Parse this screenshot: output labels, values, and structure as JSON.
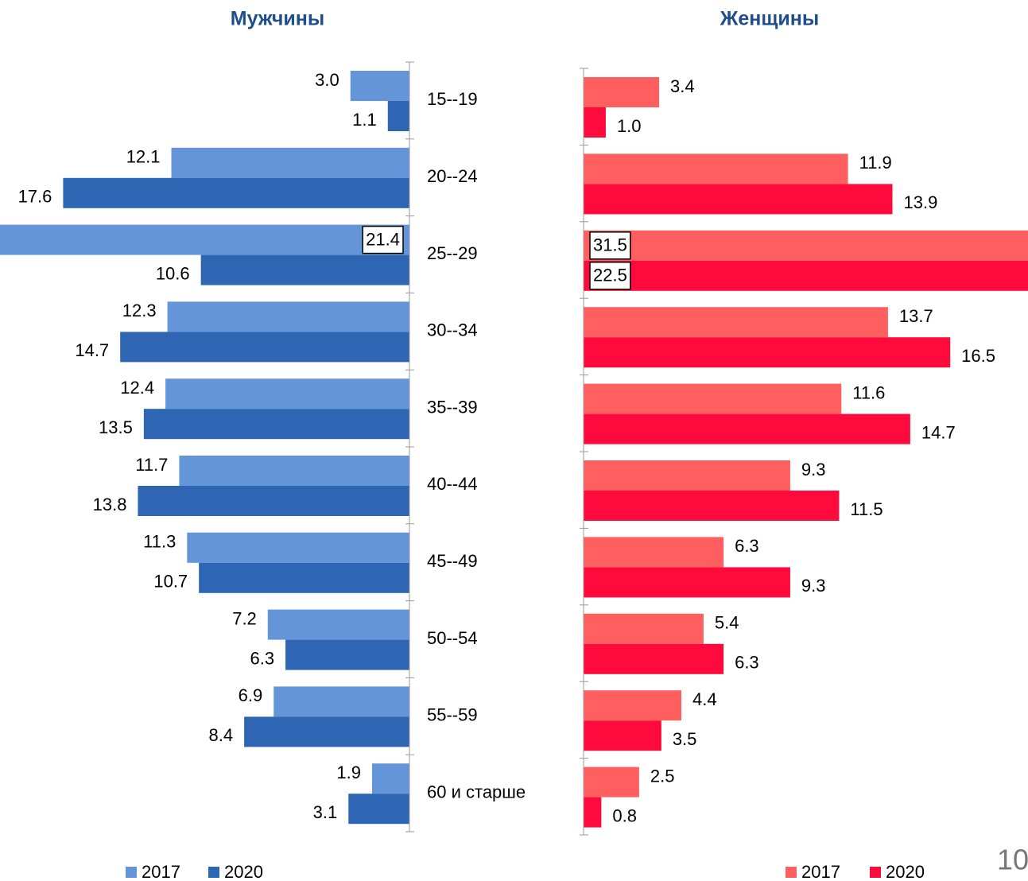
{
  "chart_data": [
    {
      "type": "bar",
      "orientation": "horizontal",
      "direction": "left",
      "title": "Мужчины",
      "categories": [
        "15--19",
        "20--24",
        "25--29",
        "30--34",
        "35--39",
        "40--44",
        "45--49",
        "50--54",
        "55--59",
        "60 и старше"
      ],
      "xlim": [
        0,
        20
      ],
      "series": [
        {
          "name": "2017",
          "color": "#6495d8",
          "values": [
            3.0,
            12.1,
            21.4,
            12.3,
            12.4,
            11.7,
            11.3,
            7.2,
            6.9,
            1.9
          ],
          "value_labels": [
            "3.0",
            "12.1",
            "21.4",
            "12.3",
            "12.4",
            "11.7",
            "11.3",
            "7.2",
            "6.9",
            "1.9"
          ]
        },
        {
          "name": "2020",
          "color": "#2e66b3",
          "values": [
            1.1,
            17.6,
            10.6,
            14.7,
            13.5,
            13.8,
            10.7,
            6.3,
            8.4,
            3.1
          ],
          "value_labels": [
            "1.1",
            "17.6",
            "10.6",
            "14.7",
            "13.5",
            "13.8",
            "10.7",
            "6.3",
            "8.4",
            "3.1"
          ]
        }
      ]
    },
    {
      "type": "bar",
      "orientation": "horizontal",
      "direction": "right",
      "title": "Женщины",
      "xlim": [
        0,
        20
      ],
      "series": [
        {
          "name": "2017",
          "color": "#ff5f5f",
          "values": [
            3.4,
            11.9,
            31.5,
            13.7,
            11.6,
            9.3,
            6.3,
            5.4,
            4.4,
            2.5
          ],
          "value_labels": [
            "3.4",
            "11.9",
            "31.5",
            "13.7",
            "11.6",
            "9.3",
            "6.3",
            "5.4",
            "4.4",
            "2.5"
          ]
        },
        {
          "name": "2020",
          "color": "#ff0a3c",
          "values": [
            1.0,
            13.9,
            22.5,
            16.5,
            14.7,
            11.5,
            9.3,
            6.3,
            3.5,
            0.8
          ],
          "value_labels": [
            "1.0",
            "13.9",
            "22.5",
            "16.5",
            "14.7",
            "11.5",
            "9.3",
            "6.3",
            "3.5",
            "0.8"
          ]
        }
      ]
    }
  ],
  "page_number": "10"
}
